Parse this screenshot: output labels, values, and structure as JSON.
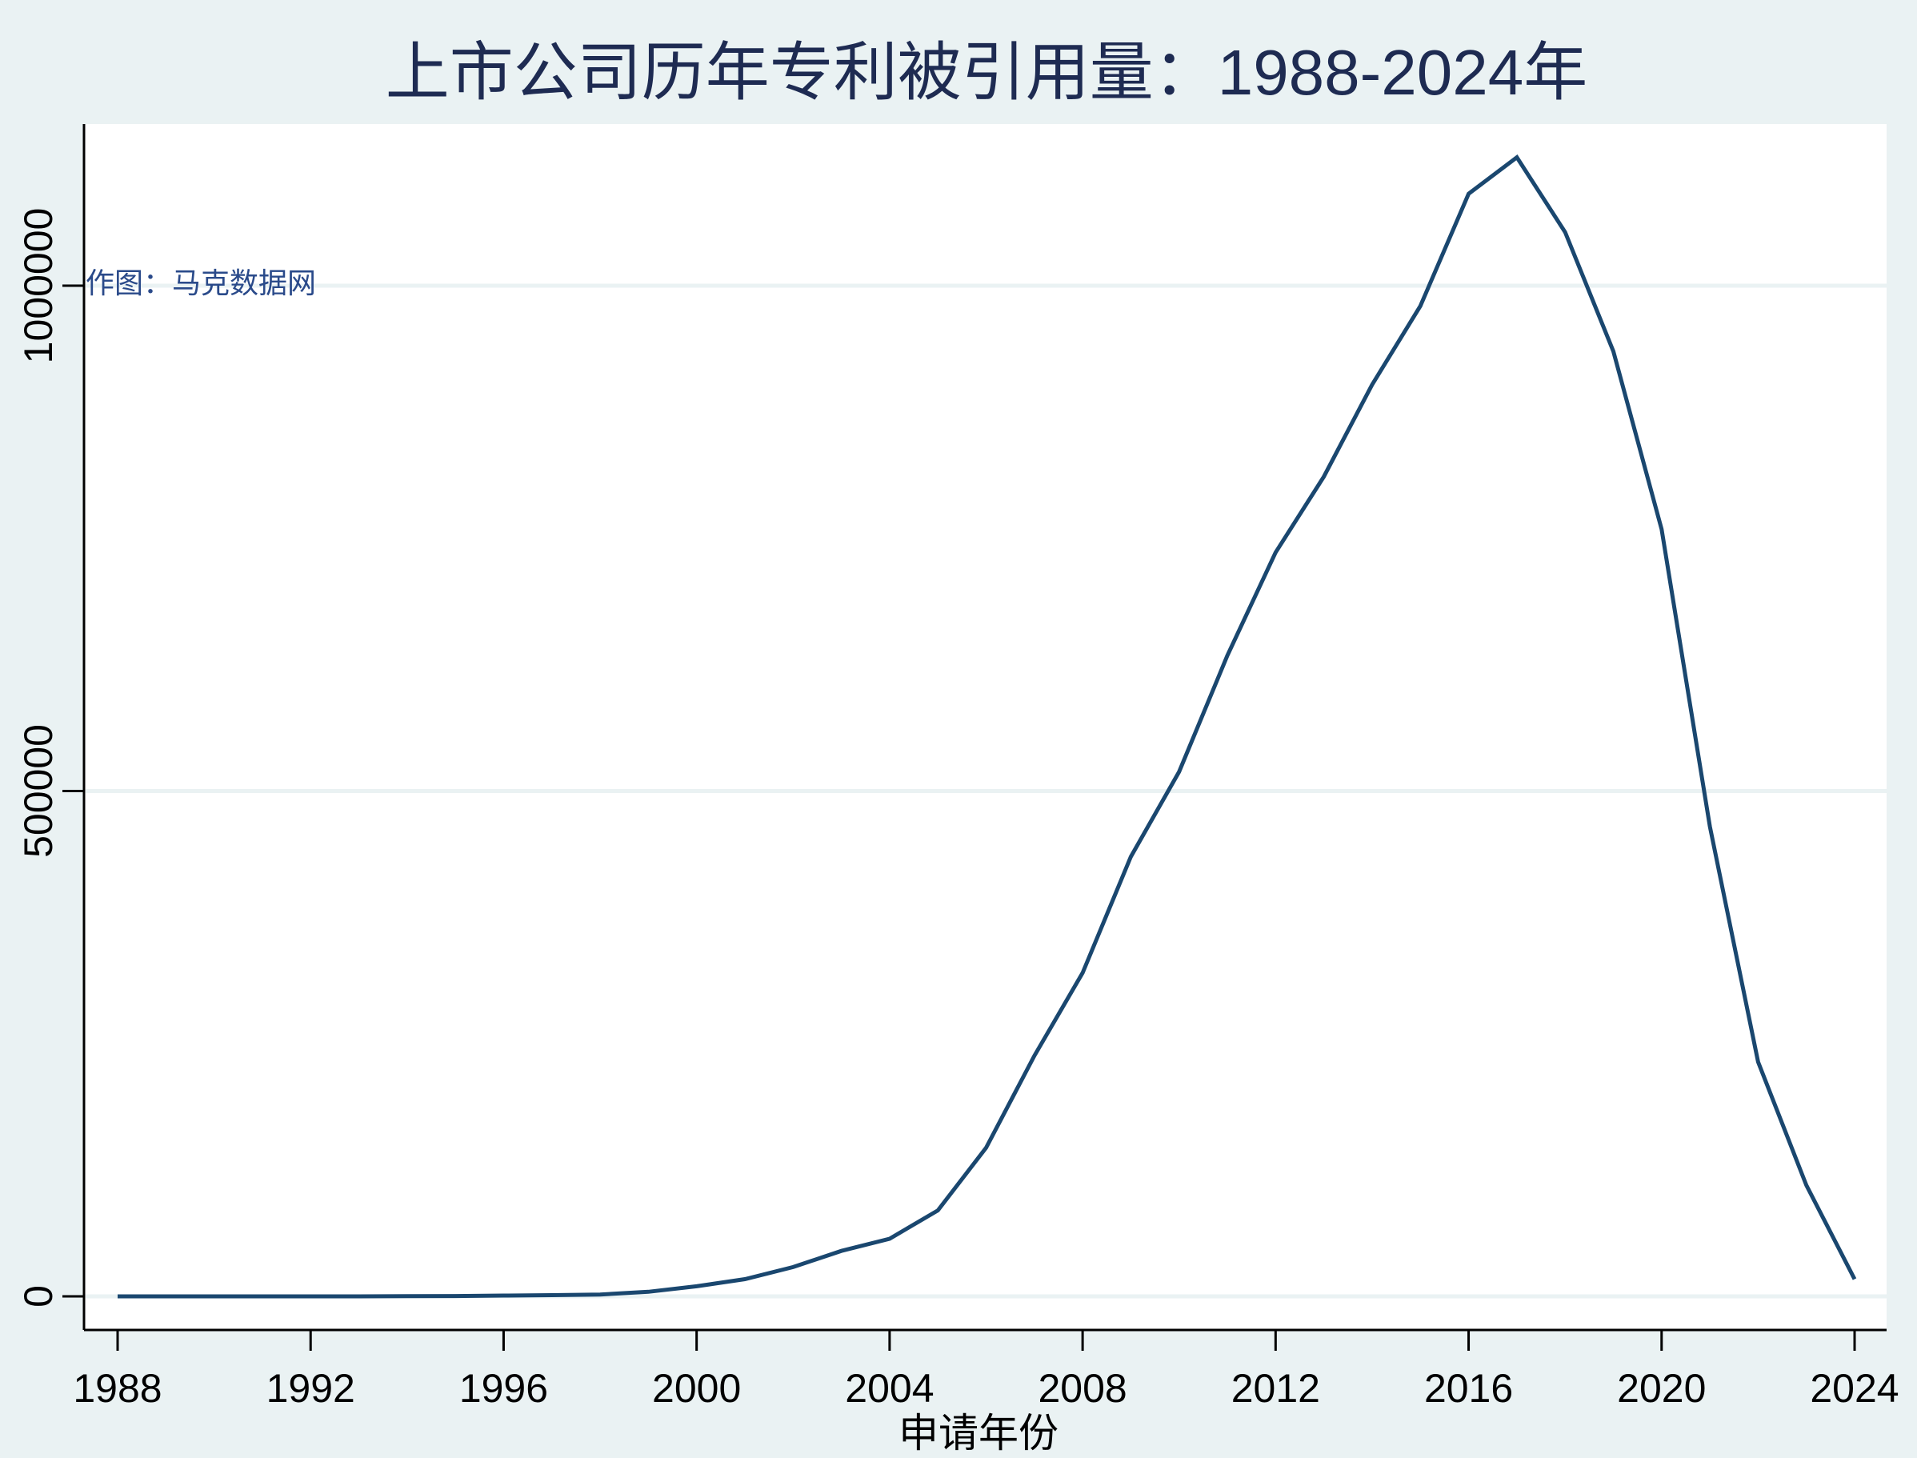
{
  "chart_data": {
    "type": "line",
    "title": "上市公司历年专利被引用量：1988-2024年",
    "xlabel": "申请年份",
    "ylabel": "",
    "annotation": "作图：马克数据网",
    "x_ticks": [
      "1988",
      "1992",
      "1996",
      "2000",
      "2004",
      "2008",
      "2012",
      "2016",
      "2020",
      "2024"
    ],
    "y_ticks": [
      "0",
      "500000",
      "1000000"
    ],
    "xlim": [
      1988,
      2024
    ],
    "ylim": [
      0,
      1150000
    ],
    "grid": "horizontal",
    "legend": "none",
    "series": [
      {
        "name": "专利被引用量",
        "color": "#1a476f",
        "x": [
          1988,
          1989,
          1990,
          1991,
          1992,
          1993,
          1994,
          1995,
          1996,
          1997,
          1998,
          1999,
          2000,
          2001,
          2002,
          2003,
          2004,
          2005,
          2006,
          2007,
          2008,
          2009,
          2010,
          2011,
          2012,
          2013,
          2014,
          2015,
          2016,
          2017,
          2018,
          2019,
          2020,
          2021,
          2022,
          2023,
          2024
        ],
        "values": [
          0,
          0,
          0,
          0,
          0,
          0,
          200,
          300,
          800,
          1200,
          1800,
          4500,
          10000,
          17000,
          29000,
          45000,
          57000,
          85000,
          147000,
          238000,
          320000,
          435000,
          519000,
          634000,
          736000,
          811000,
          902000,
          980000,
          1091000,
          1127000,
          1053000,
          935000,
          759000,
          465000,
          232000,
          110000,
          17000
        ]
      }
    ]
  },
  "colors": {
    "background": "#eaf2f3",
    "plot_background": "#ffffff",
    "line": "#1a476f",
    "title": "#1e2b52",
    "gridline": "#eaf2f3",
    "axis": "#000000",
    "credit": "#2a4a8a"
  }
}
